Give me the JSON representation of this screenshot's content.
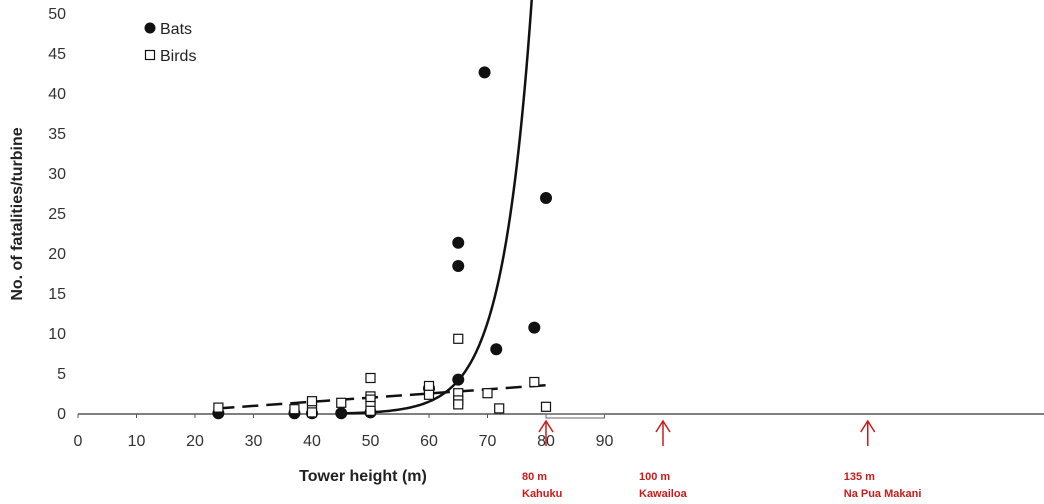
{
  "chart_data": {
    "type": "scatter",
    "xlabel": "Tower height (m)",
    "ylabel": "No. of fatalities/turbine",
    "xlim": [
      0,
      90
    ],
    "ylim": [
      0,
      50
    ],
    "x_ticks": [
      0,
      10,
      20,
      30,
      40,
      50,
      60,
      70,
      80,
      90
    ],
    "y_ticks": [
      0,
      5,
      10,
      15,
      20,
      25,
      30,
      35,
      40,
      45,
      50
    ],
    "legend_position": "top-left",
    "grid": false,
    "series": [
      {
        "name": "Bats",
        "marker": "filled-circle",
        "color": "#111111",
        "points": [
          [
            24,
            0.1
          ],
          [
            37,
            0.1
          ],
          [
            40,
            0.1
          ],
          [
            45,
            0.1
          ],
          [
            50,
            0.2
          ],
          [
            60,
            3.2
          ],
          [
            65,
            4.3
          ],
          [
            65,
            18.5
          ],
          [
            65,
            21.4
          ],
          [
            69.5,
            42.7
          ],
          [
            71.5,
            8.1
          ],
          [
            78,
            10.8
          ],
          [
            80,
            27.0
          ]
        ]
      },
      {
        "name": "Birds",
        "marker": "open-square",
        "color": "#111111",
        "points": [
          [
            24,
            0.8
          ],
          [
            37,
            0.6
          ],
          [
            40,
            1.2
          ],
          [
            40,
            1.6
          ],
          [
            40,
            0.2
          ],
          [
            45,
            1.4
          ],
          [
            50,
            4.5
          ],
          [
            50,
            2.2
          ],
          [
            50,
            1.8
          ],
          [
            50,
            1.0
          ],
          [
            50,
            0.4
          ],
          [
            60,
            3.5
          ],
          [
            60,
            2.4
          ],
          [
            65,
            9.4
          ],
          [
            65,
            2.6
          ],
          [
            65,
            1.7
          ],
          [
            65,
            1.2
          ],
          [
            70,
            2.6
          ],
          [
            72,
            0.7
          ],
          [
            78,
            4.0
          ],
          [
            80,
            0.9
          ]
        ]
      }
    ],
    "fitted_curves": [
      {
        "series": "Bats",
        "style": "solid",
        "model": "exponential",
        "points": [
          [
            45,
            0.1
          ],
          [
            55,
            0.5
          ],
          [
            60,
            1.4
          ],
          [
            65,
            4.2
          ],
          [
            70,
            11.8
          ],
          [
            75,
            29.0
          ],
          [
            77,
            40.5
          ],
          [
            78.8,
            55.0
          ]
        ]
      },
      {
        "series": "Birds",
        "style": "dashed",
        "model": "linear",
        "points": [
          [
            24,
            0.7
          ],
          [
            80,
            3.6
          ]
        ]
      }
    ],
    "annotations": [
      {
        "x": 80,
        "label1": "80 m",
        "label2": "Kahuku",
        "color": "#cc1a1a"
      },
      {
        "x": 100,
        "label1": "100  m",
        "label2": "Kawailoa",
        "color": "#cc1a1a"
      },
      {
        "x": 135,
        "label1": "135  m",
        "label2": "Na Pua Makani",
        "color": "#cc1a1a"
      }
    ],
    "extended_axis_to_x": 170
  }
}
